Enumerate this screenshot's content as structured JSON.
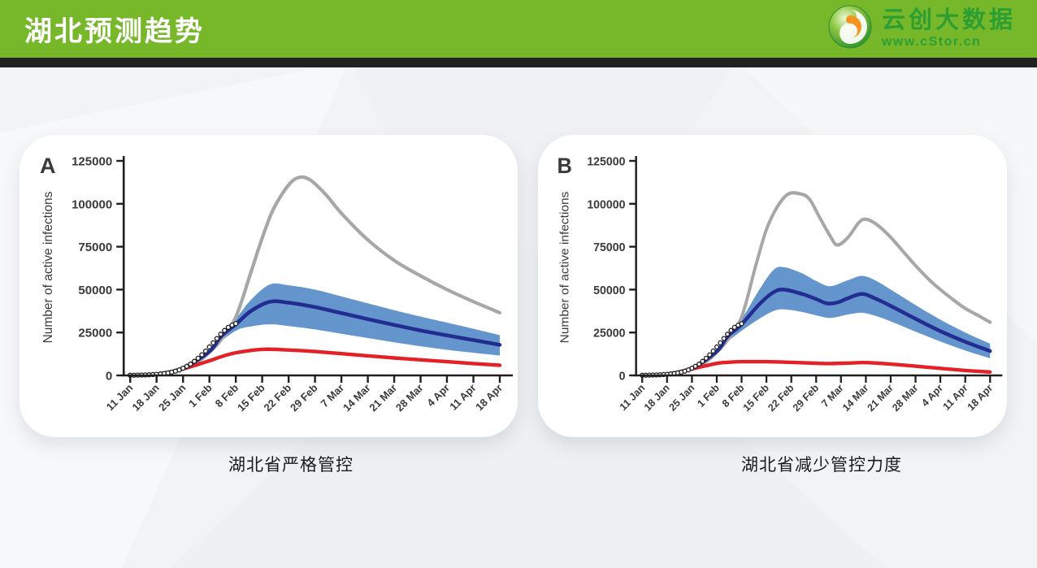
{
  "header": {
    "title": "湖北预测趋势",
    "header_green": "#76b82a",
    "accent_bar_color": "#212121"
  },
  "logo": {
    "company": "云创大数据",
    "url": "www.cStor.cn",
    "brand_green": "#2d9e32"
  },
  "panels": [
    {
      "letter": "A",
      "caption": "湖北省严格管控"
    },
    {
      "letter": "B",
      "caption": "湖北省减少管控力度"
    }
  ],
  "chart_data": [
    {
      "type": "line",
      "panel_label": "A",
      "title": "湖北省严格管控",
      "ylabel": "Number of active infections",
      "ylim": [
        0,
        125000
      ],
      "yticks": [
        0,
        25000,
        50000,
        75000,
        100000,
        125000
      ],
      "xtick_labels": [
        "11 Jan",
        "18 Jan",
        "25 Jan",
        "1 Feb",
        "8 Feb",
        "15 Feb",
        "22 Feb",
        "29 Feb",
        "7 Mar",
        "14 Mar",
        "21 Mar",
        "28 Mar",
        "4 Apr",
        "11 Apr",
        "18 Apr"
      ],
      "x_unit": "days since 11 Jan, one tick per week",
      "grid": false,
      "legend": "none",
      "series": [
        {
          "name": "credible-band",
          "style": "band",
          "color": "#6496cd",
          "x": [
            22,
            28,
            32,
            37,
            42,
            49,
            56,
            63,
            70,
            77,
            84,
            91,
            98
          ],
          "upper": [
            18500,
            33000,
            44000,
            53000,
            52500,
            50000,
            46000,
            42000,
            38000,
            34300,
            30800,
            27200,
            23500
          ],
          "lower": [
            16500,
            26000,
            28500,
            29800,
            28800,
            26800,
            24300,
            21800,
            19300,
            17000,
            14900,
            13200,
            11600
          ]
        },
        {
          "name": "upper-estimate",
          "style": "line",
          "color": "#a7a7a7",
          "width": 4.2,
          "x": [
            0,
            7,
            14,
            18,
            21,
            24,
            28,
            32,
            35,
            38,
            42,
            45,
            48,
            52,
            56,
            63,
            70,
            77,
            84,
            91,
            98
          ],
          "y": [
            100,
            650,
            4200,
            8000,
            13500,
            20500,
            34000,
            60000,
            80000,
            97000,
            111000,
            115500,
            113500,
            105000,
            94500,
            79000,
            67000,
            58000,
            50000,
            43000,
            36500
          ]
        },
        {
          "name": "lower-estimate",
          "style": "line",
          "color": "#e32126",
          "width": 4.4,
          "x": [
            0,
            7,
            14,
            21,
            24,
            28,
            35,
            42,
            49,
            56,
            63,
            70,
            77,
            84,
            91,
            98
          ],
          "y": [
            90,
            600,
            3800,
            8500,
            10800,
            13200,
            15200,
            14800,
            13900,
            12700,
            11400,
            10200,
            9100,
            8000,
            6900,
            5900
          ]
        },
        {
          "name": "mean-prediction",
          "style": "line",
          "color": "#232d91",
          "width": 4.6,
          "x": [
            0,
            7,
            14,
            21,
            24,
            28,
            32,
            37,
            42,
            49,
            56,
            63,
            70,
            77,
            84,
            91,
            98
          ],
          "y": [
            100,
            650,
            4200,
            14000,
            22500,
            29800,
            37500,
            42900,
            42400,
            39800,
            36300,
            32800,
            29400,
            26200,
            23300,
            20600,
            17800
          ]
        },
        {
          "name": "observed-data",
          "style": "dots",
          "color": "#ffffff",
          "stroke": "#1f1f1f",
          "x": [
            0,
            1,
            2,
            3,
            4,
            5,
            6,
            7,
            8,
            9,
            10,
            11,
            12,
            13,
            14,
            15,
            16,
            17,
            18,
            19,
            20,
            21,
            22,
            23,
            24,
            25,
            26,
            27,
            28
          ],
          "y": [
            100,
            130,
            170,
            220,
            290,
            380,
            500,
            650,
            850,
            1100,
            1450,
            1900,
            2500,
            3200,
            4200,
            5300,
            6600,
            8200,
            10000,
            12000,
            14200,
            16600,
            19000,
            21500,
            24000,
            26200,
            28000,
            29300,
            30200
          ]
        }
      ]
    },
    {
      "type": "line",
      "panel_label": "B",
      "title": "湖北省减少管控力度",
      "ylabel": "Number of active infections",
      "ylim": [
        0,
        125000
      ],
      "yticks": [
        0,
        25000,
        50000,
        75000,
        100000,
        125000
      ],
      "xtick_labels": [
        "11 Jan",
        "18 Jan",
        "25 Jan",
        "1 Feb",
        "8 Feb",
        "15 Feb",
        "22 Feb",
        "29 Feb",
        "7 Mar",
        "14 Mar",
        "21 Mar",
        "28 Mar",
        "4 Apr",
        "11 Apr",
        "18 Apr"
      ],
      "x_unit": "days since 11 Jan, one tick per week",
      "grid": false,
      "legend": "none",
      "series": [
        {
          "name": "credible-band",
          "style": "band",
          "color": "#6496cd",
          "x": [
            22,
            28,
            33,
            37,
            40,
            45,
            49,
            53,
            58,
            62,
            66,
            70,
            77,
            84,
            91,
            98
          ],
          "upper": [
            18500,
            33000,
            50000,
            61500,
            63000,
            59500,
            55000,
            52000,
            55500,
            58000,
            55000,
            50000,
            41000,
            32500,
            25000,
            18500
          ],
          "lower": [
            16500,
            26000,
            33000,
            37500,
            38500,
            37000,
            35000,
            33500,
            35500,
            36500,
            34500,
            31500,
            25500,
            19800,
            14500,
            10000
          ]
        },
        {
          "name": "upper-estimate",
          "style": "line",
          "color": "#a7a7a7",
          "width": 4.2,
          "x": [
            0,
            7,
            14,
            18,
            21,
            24,
            28,
            32,
            35,
            38,
            41,
            44,
            47,
            50,
            53,
            55,
            58,
            61,
            63,
            66,
            70,
            74,
            77,
            81,
            84,
            88,
            91,
            95,
            98
          ],
          "y": [
            100,
            650,
            4200,
            8000,
            13500,
            20500,
            34000,
            64000,
            85000,
            98000,
            105500,
            106000,
            103000,
            92000,
            81000,
            76000,
            80500,
            89000,
            91000,
            88000,
            80500,
            71000,
            64000,
            55500,
            50000,
            43500,
            39000,
            34500,
            31000
          ]
        },
        {
          "name": "lower-estimate",
          "style": "line",
          "color": "#e32126",
          "width": 4.4,
          "x": [
            0,
            7,
            14,
            21,
            24,
            28,
            35,
            42,
            49,
            53,
            58,
            62,
            66,
            70,
            77,
            84,
            91,
            98
          ],
          "y": [
            90,
            600,
            3800,
            7000,
            7600,
            8000,
            8000,
            7600,
            7100,
            6900,
            7200,
            7500,
            7200,
            6600,
            5400,
            4100,
            2900,
            2000
          ]
        },
        {
          "name": "mean-prediction",
          "style": "line",
          "color": "#232d91",
          "width": 4.6,
          "x": [
            0,
            7,
            14,
            21,
            24,
            28,
            33,
            37,
            40,
            45,
            49,
            52,
            55,
            58,
            62,
            66,
            70,
            77,
            84,
            91,
            98
          ],
          "y": [
            100,
            650,
            4200,
            14000,
            22500,
            29800,
            41500,
            48500,
            50000,
            47500,
            44500,
            42000,
            42500,
            45000,
            47500,
            44500,
            40500,
            33000,
            25800,
            19600,
            14200
          ]
        },
        {
          "name": "observed-data",
          "style": "dots",
          "color": "#ffffff",
          "stroke": "#1f1f1f",
          "x": [
            0,
            1,
            2,
            3,
            4,
            5,
            6,
            7,
            8,
            9,
            10,
            11,
            12,
            13,
            14,
            15,
            16,
            17,
            18,
            19,
            20,
            21,
            22,
            23,
            24,
            25,
            26,
            27,
            28
          ],
          "y": [
            100,
            130,
            170,
            220,
            290,
            380,
            500,
            650,
            850,
            1100,
            1450,
            1900,
            2500,
            3200,
            4200,
            5300,
            6600,
            8200,
            10000,
            12000,
            14200,
            16600,
            19000,
            21500,
            24000,
            26200,
            28000,
            29300,
            30200
          ]
        }
      ]
    }
  ]
}
